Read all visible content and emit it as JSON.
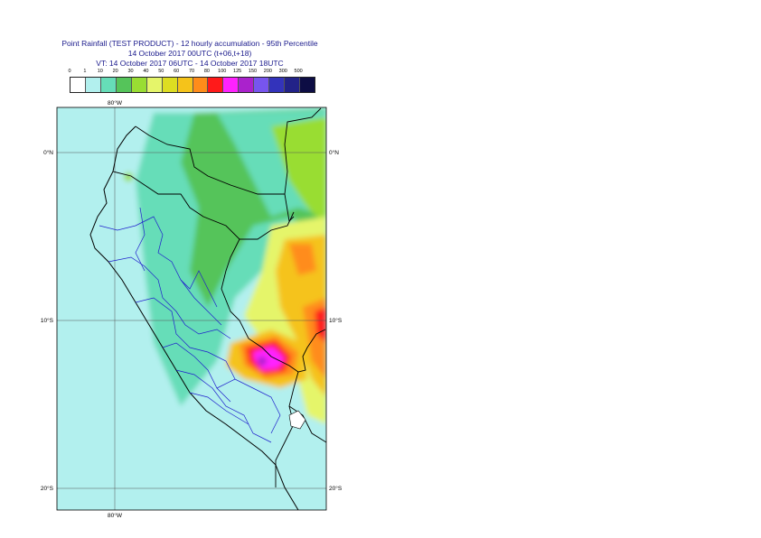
{
  "title": {
    "line1": "Point Rainfall (TEST PRODUCT) - 12 hourly accumulation - 95th Percentile",
    "line2": "14 October 2017 00UTC (t+06,t+18)",
    "line3": "VT: 14 October 2017 06UTC - 14 October 2017 18UTC"
  },
  "legend": {
    "ticks": [
      "0",
      "1",
      "10",
      "20",
      "30",
      "40",
      "50",
      "60",
      "70",
      "80",
      "100",
      "125",
      "150",
      "200",
      "300",
      "500"
    ],
    "colors": [
      "#ffffff",
      "#b2f0ee",
      "#66ddb8",
      "#55c45a",
      "#99dd33",
      "#e5f56a",
      "#dddd22",
      "#f5c31a",
      "#ff8c1a",
      "#ff1a1a",
      "#ff22ff",
      "#aa22cc",
      "#7755ee",
      "#3333bb",
      "#222288",
      "#0d0d44"
    ]
  },
  "map": {
    "lon_labels": [
      "80°W"
    ],
    "lat_labels": [
      "0°N",
      "10°S",
      "20°S"
    ],
    "land_color": "#ffffff",
    "sea_color": "#b2f0ee"
  }
}
